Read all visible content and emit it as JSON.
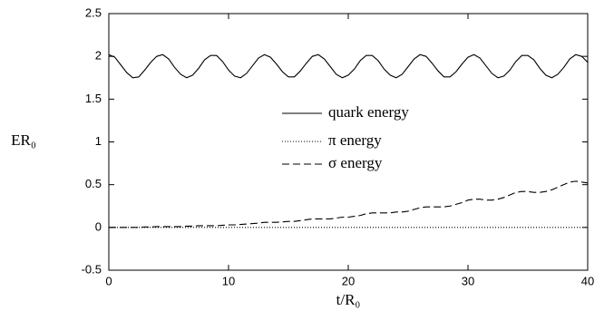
{
  "chart_data": {
    "type": "line",
    "xlabel": "t/R₀",
    "ylabel": "ER₀",
    "xlim": [
      0,
      40
    ],
    "xticks": [
      0,
      10,
      20,
      30,
      40
    ],
    "ylim": [
      -0.5,
      2.5
    ],
    "yticks": [
      -0.5,
      0,
      0.5,
      1,
      1.5,
      2,
      2.5
    ],
    "x": [
      0,
      0.5,
      1,
      1.5,
      2,
      2.5,
      3,
      3.5,
      4,
      4.5,
      5,
      5.5,
      6,
      6.5,
      7,
      7.5,
      8,
      8.5,
      9,
      9.5,
      10,
      10.5,
      11,
      11.5,
      12,
      12.5,
      13,
      13.5,
      14,
      14.5,
      15,
      15.5,
      16,
      16.5,
      17,
      17.5,
      18,
      18.5,
      19,
      19.5,
      20,
      20.5,
      21,
      21.5,
      22,
      22.5,
      23,
      23.5,
      24,
      24.5,
      25,
      25.5,
      26,
      26.5,
      27,
      27.5,
      28,
      28.5,
      29,
      29.5,
      30,
      30.5,
      31,
      31.5,
      32,
      32.5,
      33,
      33.5,
      34,
      34.5,
      35,
      35.5,
      36,
      36.5,
      37,
      37.5,
      38,
      38.5,
      39,
      39.5,
      40
    ],
    "series": [
      {
        "name": "quark energy",
        "color": "#000000",
        "style": "solid",
        "values": [
          2.02,
          1.99,
          1.9,
          1.81,
          1.75,
          1.76,
          1.84,
          1.93,
          2.0,
          2.02,
          1.97,
          1.87,
          1.79,
          1.75,
          1.78,
          1.86,
          1.96,
          2.01,
          2.01,
          1.94,
          1.84,
          1.77,
          1.75,
          1.8,
          1.89,
          1.98,
          2.02,
          1.99,
          1.91,
          1.82,
          1.76,
          1.76,
          1.83,
          1.92,
          2.0,
          2.02,
          1.97,
          1.88,
          1.79,
          1.75,
          1.78,
          1.85,
          1.95,
          2.01,
          2.01,
          1.95,
          1.85,
          1.78,
          1.75,
          1.79,
          1.88,
          1.97,
          2.02,
          2.0,
          1.92,
          1.83,
          1.76,
          1.76,
          1.82,
          1.91,
          1.99,
          2.02,
          1.98,
          1.89,
          1.8,
          1.75,
          1.77,
          1.84,
          1.94,
          2.01,
          2.01,
          1.96,
          1.86,
          1.78,
          1.75,
          1.79,
          1.87,
          1.97,
          2.02,
          2.0,
          1.93
        ]
      },
      {
        "name": "π energy",
        "color": "#000000",
        "style": "dotted",
        "values": [
          0,
          0,
          0,
          0,
          0,
          0,
          0,
          0,
          0,
          0,
          0,
          0,
          0,
          0,
          0,
          0,
          0,
          0,
          0,
          0,
          0,
          0,
          0,
          0,
          0,
          0,
          0,
          0,
          0,
          0,
          0,
          0,
          0,
          0,
          0,
          0,
          0,
          0,
          0,
          0,
          0,
          0,
          0,
          0,
          0,
          0,
          0,
          0,
          0,
          0,
          0,
          0,
          0,
          0,
          0,
          0,
          0,
          0,
          0,
          0,
          0,
          0,
          0,
          0,
          0,
          0,
          0,
          0,
          0,
          0,
          0,
          0,
          0,
          0,
          0,
          0,
          0,
          0,
          0,
          0,
          0
        ]
      },
      {
        "name": "σ energy",
        "color": "#000000",
        "style": "dashed",
        "values": [
          0,
          0,
          0,
          0,
          0,
          0,
          0.005,
          0.005,
          0.01,
          0.01,
          0.01,
          0.01,
          0.01,
          0.015,
          0.015,
          0.02,
          0.02,
          0.02,
          0.02,
          0.025,
          0.03,
          0.03,
          0.035,
          0.04,
          0.045,
          0.05,
          0.06,
          0.06,
          0.06,
          0.065,
          0.07,
          0.07,
          0.08,
          0.09,
          0.1,
          0.1,
          0.1,
          0.1,
          0.11,
          0.12,
          0.12,
          0.13,
          0.14,
          0.16,
          0.17,
          0.17,
          0.17,
          0.17,
          0.18,
          0.18,
          0.19,
          0.21,
          0.23,
          0.24,
          0.24,
          0.24,
          0.24,
          0.25,
          0.27,
          0.29,
          0.32,
          0.33,
          0.33,
          0.32,
          0.32,
          0.33,
          0.35,
          0.38,
          0.41,
          0.42,
          0.42,
          0.41,
          0.41,
          0.42,
          0.44,
          0.47,
          0.5,
          0.53,
          0.54,
          0.53,
          0.52
        ]
      }
    ]
  }
}
